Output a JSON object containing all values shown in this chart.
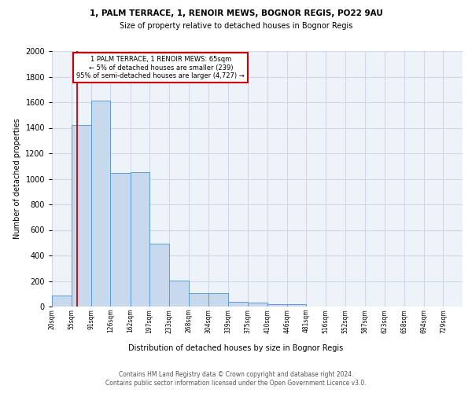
{
  "title1": "1, PALM TERRACE, 1, RENOIR MEWS, BOGNOR REGIS, PO22 9AU",
  "title2": "Size of property relative to detached houses in Bognor Regis",
  "xlabel": "Distribution of detached houses by size in Bognor Regis",
  "ylabel": "Number of detached properties",
  "bar_labels": [
    "20sqm",
    "55sqm",
    "91sqm",
    "126sqm",
    "162sqm",
    "197sqm",
    "233sqm",
    "268sqm",
    "304sqm",
    "339sqm",
    "375sqm",
    "410sqm",
    "446sqm",
    "481sqm",
    "516sqm",
    "552sqm",
    "587sqm",
    "623sqm",
    "658sqm",
    "694sqm",
    "729sqm"
  ],
  "bar_values": [
    85,
    1420,
    1610,
    1045,
    1050,
    490,
    205,
    105,
    105,
    40,
    30,
    20,
    20,
    0,
    0,
    0,
    0,
    0,
    0,
    0,
    0
  ],
  "bar_color": "#c9d9ed",
  "bar_edge_color": "#5b9bd5",
  "grid_color": "#d0d8e8",
  "background_color": "#eef2f9",
  "property_line_x": 65,
  "bin_edges": [
    20,
    55,
    91,
    126,
    162,
    197,
    233,
    268,
    304,
    339,
    375,
    410,
    446,
    481,
    516,
    552,
    587,
    623,
    658,
    694,
    729
  ],
  "annotation_text": "1 PALM TERRACE, 1 RENOIR MEWS: 65sqm\n← 5% of detached houses are smaller (239)\n95% of semi-detached houses are larger (4,727) →",
  "annotation_box_color": "#ffffff",
  "annotation_box_edge": "#cc0000",
  "red_line_color": "#cc0000",
  "footer1": "Contains HM Land Registry data © Crown copyright and database right 2024.",
  "footer2": "Contains public sector information licensed under the Open Government Licence v3.0.",
  "ylim": [
    0,
    2000
  ],
  "yticks": [
    0,
    200,
    400,
    600,
    800,
    1000,
    1200,
    1400,
    1600,
    1800,
    2000
  ]
}
